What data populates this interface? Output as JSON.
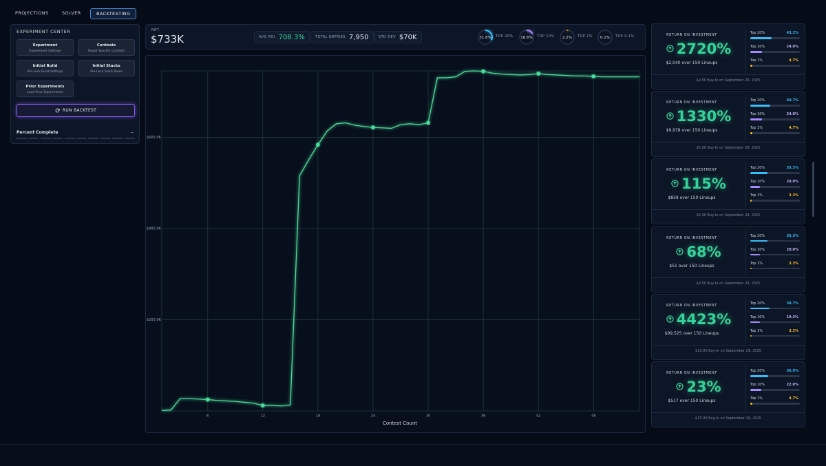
{
  "nav": {
    "tabs": [
      "PROJECTIONS",
      "SOLVER",
      "BACKTESTING"
    ],
    "active": 2
  },
  "experiment_center": {
    "title": "EXPERIMENT CENTER",
    "buttons": [
      {
        "title": "Experiment",
        "subtitle": "Experiment Settings"
      },
      {
        "title": "Contests",
        "subtitle": "Target Specific Contests"
      },
      {
        "title": "Initial Build",
        "subtitle": "Pre-Lock Build Settings"
      },
      {
        "title": "Initial Stacks",
        "subtitle": "Pre-Lock Stack Rules"
      },
      {
        "title": "Prior Experiments",
        "subtitle": "Load Prior Experiments"
      }
    ],
    "run_button": "RUN BACKTEST",
    "progress": {
      "label": "Percent Complete",
      "value": "--"
    }
  },
  "stats": {
    "net": {
      "label": "NET",
      "value": "$733K"
    },
    "metrics": [
      {
        "label": "AVG ROI",
        "value": "708.3%"
      },
      {
        "label": "TOTAL ENTRIES",
        "value": "7,950"
      },
      {
        "label": "STD DEV",
        "value": "$70K"
      }
    ],
    "rings": [
      {
        "value": 31.8,
        "text": "31.8%",
        "label": "TOP 20%",
        "color": "#38bdf8"
      },
      {
        "value": 16.6,
        "text": "16.6%",
        "label": "TOP 10%",
        "color": "#a78bfa"
      },
      {
        "value": 2.2,
        "text": "2.2%",
        "label": "TOP 1%",
        "color": "#f59e0b"
      },
      {
        "value": 0.1,
        "text": "0.1%",
        "label": "TOP 0.1%",
        "color": "#34d399"
      }
    ]
  },
  "chart_data": {
    "type": "line",
    "xlabel": "Contest Count",
    "color": "#4ade9a",
    "x": [
      1,
      2,
      3,
      4,
      5,
      6,
      7,
      8,
      9,
      10,
      11,
      12,
      13,
      14,
      15,
      16,
      17,
      18,
      19,
      20,
      21,
      22,
      23,
      24,
      25,
      26,
      27,
      28,
      29,
      30,
      31,
      32,
      33,
      34,
      35,
      36,
      37,
      38,
      39,
      40,
      41,
      42,
      43,
      44,
      45,
      46,
      47,
      48,
      49,
      50,
      51,
      52,
      53
    ],
    "values": [
      1000,
      2000,
      27000,
      27000,
      26000,
      25000,
      23000,
      22000,
      21000,
      19000,
      17000,
      12000,
      12000,
      11000,
      13000,
      516000,
      551000,
      584000,
      614000,
      630000,
      632000,
      627000,
      624000,
      622000,
      621000,
      620000,
      628000,
      630000,
      628000,
      632000,
      731000,
      731000,
      733000,
      745000,
      746000,
      745000,
      741000,
      739000,
      738000,
      737000,
      738000,
      740000,
      738000,
      737000,
      736000,
      735000,
      735000,
      734000,
      733000,
      733000,
      733000,
      733000,
      733000
    ],
    "xlim": [
      1,
      53
    ],
    "xticks": [
      6,
      12,
      18,
      24,
      30,
      36,
      42,
      48
    ],
    "ylim": [
      0,
      746000
    ],
    "yticks": [
      {
        "value": 200000,
        "label": "$200.0K"
      },
      {
        "value": 400000,
        "label": "$400.0K"
      },
      {
        "value": 600000,
        "label": "$600.0K"
      }
    ],
    "grid": true
  },
  "cards": [
    {
      "label": "RETURN ON INVESTMENT",
      "roi": "2720%",
      "summary": "$2,040 over 150 Lineups",
      "footer": "$0.50 Buy-In on September 29, 2025",
      "bars": [
        {
          "label": "Top 20%",
          "value": 43.3,
          "text": "43.3%"
        },
        {
          "label": "Top 10%",
          "value": 24.0,
          "text": "24.0%"
        },
        {
          "label": "Top 1%",
          "value": 4.7,
          "text": "4.7%"
        }
      ]
    },
    {
      "label": "RETURN ON INVESTMENT",
      "roi": "1330%",
      "summary": "$9,978 over 150 Lineups",
      "footer": "$5.00 Buy-In on September 29, 2025",
      "bars": [
        {
          "label": "Top 20%",
          "value": 40.7,
          "text": "40.7%"
        },
        {
          "label": "Top 10%",
          "value": 24.0,
          "text": "24.0%"
        },
        {
          "label": "Top 1%",
          "value": 4.7,
          "text": "4.7%"
        }
      ]
    },
    {
      "label": "RETURN ON INVESTMENT",
      "roi": "115%",
      "summary": "$859 over 150 Lineups",
      "footer": "$5.00 Buy-In on September 29, 2025",
      "bars": [
        {
          "label": "Top 20%",
          "value": 35.3,
          "text": "35.3%"
        },
        {
          "label": "Top 10%",
          "value": 20.0,
          "text": "20.0%"
        },
        {
          "label": "Top 1%",
          "value": 3.3,
          "text": "3.3%"
        }
      ]
    },
    {
      "label": "RETURN ON INVESTMENT",
      "roi": "68%",
      "summary": "$51 over 150 Lineups",
      "footer": "$0.50 Buy-In on September 29, 2025",
      "bars": [
        {
          "label": "Top 20%",
          "value": 35.3,
          "text": "35.3%"
        },
        {
          "label": "Top 10%",
          "value": 20.0,
          "text": "20.0%"
        },
        {
          "label": "Top 1%",
          "value": 3.3,
          "text": "3.3%"
        }
      ]
    },
    {
      "label": "RETURN ON INVESTMENT",
      "roi": "4423%",
      "summary": "$99,525 over 150 Lineups",
      "footer": "$15.00 Buy-In on September 29, 2025",
      "bars": [
        {
          "label": "Top 20%",
          "value": 38.7,
          "text": "38.7%"
        },
        {
          "label": "Top 10%",
          "value": 19.3,
          "text": "19.3%"
        },
        {
          "label": "Top 1%",
          "value": 3.3,
          "text": "3.3%"
        }
      ]
    },
    {
      "label": "RETURN ON INVESTMENT",
      "roi": "23%",
      "summary": "$517 over 150 Lineups",
      "footer": "$15.00 Buy-In on September 29, 2025",
      "bars": [
        {
          "label": "Top 20%",
          "value": 36.0,
          "text": "36.0%"
        },
        {
          "label": "Top 10%",
          "value": 22.0,
          "text": "22.0%"
        },
        {
          "label": "Top 1%",
          "value": 4.7,
          "text": "4.7%"
        }
      ]
    }
  ]
}
